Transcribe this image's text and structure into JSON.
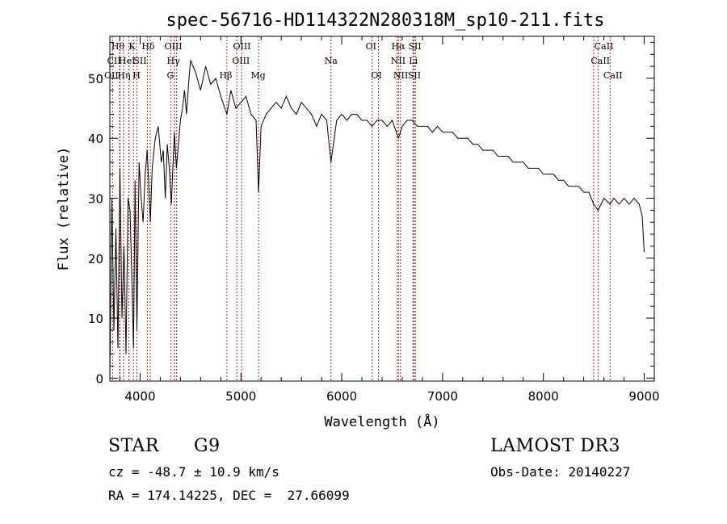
{
  "chart_data": {
    "type": "line",
    "title": "spec-56716-HD114322N280318M_sp10-211.fits",
    "xlabel": "Wavelength (Å)",
    "ylabel": "Flux (relative)",
    "xlim": [
      3700,
      9100
    ],
    "ylim": [
      -0.5,
      57
    ],
    "xticks": [
      4000,
      5000,
      6000,
      7000,
      8000,
      9000
    ],
    "xtick_labels": [
      "4000",
      "5000",
      "6000",
      "7000",
      "8000",
      "9000"
    ],
    "yticks": [
      0,
      10,
      20,
      30,
      40,
      50
    ],
    "ytick_labels": [
      "0",
      "10",
      "20",
      "30",
      "40",
      "50"
    ],
    "grid": false,
    "series": [
      {
        "name": "spectrum",
        "x": [
          3700,
          3720,
          3740,
          3760,
          3780,
          3800,
          3820,
          3840,
          3860,
          3880,
          3900,
          3920,
          3935,
          3950,
          3968,
          3990,
          4010,
          4030,
          4050,
          4070,
          4101,
          4120,
          4150,
          4180,
          4210,
          4230,
          4250,
          4270,
          4290,
          4310,
          4340,
          4360,
          4380,
          4400,
          4420,
          4440,
          4460,
          4480,
          4500,
          4550,
          4600,
          4650,
          4700,
          4750,
          4800,
          4861,
          4900,
          4950,
          5000,
          5050,
          5100,
          5150,
          5175,
          5200,
          5250,
          5300,
          5350,
          5400,
          5450,
          5500,
          5550,
          5600,
          5650,
          5700,
          5750,
          5800,
          5850,
          5893,
          5950,
          6000,
          6050,
          6100,
          6150,
          6200,
          6250,
          6300,
          6350,
          6400,
          6450,
          6500,
          6563,
          6600,
          6650,
          6700,
          6750,
          6800,
          6850,
          6900,
          6950,
          7000,
          7050,
          7100,
          7150,
          7200,
          7250,
          7300,
          7350,
          7400,
          7450,
          7500,
          7550,
          7600,
          7650,
          7700,
          7750,
          7800,
          7850,
          7900,
          7950,
          8000,
          8050,
          8100,
          8150,
          8200,
          8250,
          8300,
          8350,
          8400,
          8450,
          8498,
          8542,
          8600,
          8662,
          8700,
          8750,
          8800,
          8850,
          8900,
          8950,
          8980,
          9000
        ],
        "values": [
          0,
          30,
          8,
          25,
          5,
          35,
          10,
          22,
          4,
          30,
          28,
          15,
          5,
          33,
          8,
          36,
          30,
          26,
          34,
          38,
          26,
          35,
          40,
          42,
          36,
          38,
          30,
          39,
          35,
          29,
          41,
          35,
          39,
          43,
          45,
          48,
          44,
          49,
          53,
          51,
          48,
          52,
          49,
          50,
          47,
          44,
          48,
          45,
          46,
          47,
          44,
          43,
          31,
          42,
          44,
          45,
          46,
          45,
          47,
          45,
          44,
          46,
          45,
          44,
          42,
          44,
          43,
          36,
          43,
          44,
          43,
          44,
          44,
          43,
          43,
          42,
          43,
          43,
          42,
          43,
          40,
          42,
          43,
          43,
          42,
          42,
          42,
          41,
          42,
          41,
          41,
          41,
          40,
          40,
          40,
          39,
          39,
          38,
          38,
          38,
          37,
          37,
          37,
          36,
          36,
          36,
          35,
          35,
          35,
          34,
          34,
          34,
          33,
          33,
          32,
          32,
          32,
          31,
          31,
          29,
          28,
          30,
          29,
          30,
          29,
          30,
          29,
          30,
          29,
          27,
          21
        ]
      }
    ],
    "lines": [
      {
        "label": "Hθ",
        "x": 3797
      },
      {
        "label": "CII",
        "x": 3800
      },
      {
        "label": "OII",
        "x": 3727
      },
      {
        "label": "HeI",
        "x": 3889
      },
      {
        "label": "Hη",
        "x": 3835
      },
      {
        "label": "K",
        "x": 3934
      },
      {
        "label": "H",
        "x": 3968
      },
      {
        "label": "Hδ",
        "x": 4101
      },
      {
        "label": "SII",
        "x": 4072
      },
      {
        "label": "OIII",
        "x": 4363
      },
      {
        "label": "Hγ",
        "x": 4340
      },
      {
        "label": "G",
        "x": 4304
      },
      {
        "label": "Hβ",
        "x": 4861
      },
      {
        "label": "OIII",
        "x": 4959
      },
      {
        "label": "OIII",
        "x": 5007
      },
      {
        "label": "Mg",
        "x": 5175
      },
      {
        "label": "Na",
        "x": 5893
      },
      {
        "label": "OI",
        "x": 6300
      },
      {
        "label": "OI",
        "x": 6364
      },
      {
        "label": "Hα",
        "x": 6563
      },
      {
        "label": "NII",
        "x": 6548
      },
      {
        "label": "NII",
        "x": 6583
      },
      {
        "label": "SII",
        "x": 6717
      },
      {
        "label": "SII",
        "x": 6731
      },
      {
        "label": "Li",
        "x": 6707
      },
      {
        "label": "CaII",
        "x": 8498
      },
      {
        "label": "CaII",
        "x": 8542
      },
      {
        "label": "CaII",
        "x": 8662
      }
    ],
    "line_labels": [
      {
        "text": "Hθ",
        "x": 3780,
        "row": 0
      },
      {
        "text": "K",
        "x": 3920,
        "row": 0
      },
      {
        "text": "Hδ",
        "x": 4080,
        "row": 0
      },
      {
        "text": "OIII",
        "x": 4330,
        "row": 0
      },
      {
        "text": "OIII",
        "x": 5010,
        "row": 0
      },
      {
        "text": "OI",
        "x": 6290,
        "row": 0
      },
      {
        "text": "Hα",
        "x": 6560,
        "row": 0
      },
      {
        "text": "SII",
        "x": 6725,
        "row": 0
      },
      {
        "text": "CaII",
        "x": 8600,
        "row": 0
      },
      {
        "text": "CII",
        "x": 3740,
        "row": 1
      },
      {
        "text": "HeI",
        "x": 3870,
        "row": 1
      },
      {
        "text": "SII",
        "x": 4000,
        "row": 1
      },
      {
        "text": "Hγ",
        "x": 4330,
        "row": 1
      },
      {
        "text": "OIII",
        "x": 5000,
        "row": 1
      },
      {
        "text": "Na",
        "x": 5893,
        "row": 1
      },
      {
        "text": "NII",
        "x": 6560,
        "row": 1
      },
      {
        "text": "Li",
        "x": 6710,
        "row": 1
      },
      {
        "text": "CaII",
        "x": 8565,
        "row": 1
      },
      {
        "text": "OII",
        "x": 3715,
        "row": 2
      },
      {
        "text": "Hη",
        "x": 3840,
        "row": 2
      },
      {
        "text": "H",
        "x": 3965,
        "row": 2
      },
      {
        "text": "G",
        "x": 4300,
        "row": 2
      },
      {
        "text": "Hβ",
        "x": 4850,
        "row": 2
      },
      {
        "text": "Mg",
        "x": 5170,
        "row": 2
      },
      {
        "text": "OI",
        "x": 6345,
        "row": 2
      },
      {
        "text": "NII",
        "x": 6585,
        "row": 2
      },
      {
        "text": "SII",
        "x": 6720,
        "row": 2
      },
      {
        "text": "CaII",
        "x": 8690,
        "row": 2
      }
    ]
  },
  "info": {
    "object_class": "STAR",
    "subclass": "G9",
    "survey": "LAMOST DR3",
    "cz": "cz = -48.7 ± 10.9 km/s",
    "obs_date": "Obs-Date: 20140227",
    "coords": "RA = 174.14225, DEC =  27.66099"
  },
  "colors": {
    "line_marker": "#b22222",
    "spectrum": "#000000",
    "axes": "#000000"
  }
}
